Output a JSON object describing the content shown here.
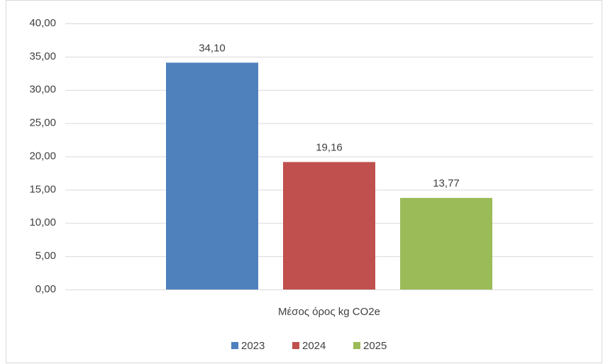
{
  "chart_data": {
    "type": "bar",
    "categories": [
      "Μέσος όρος kg CO2e"
    ],
    "series": [
      {
        "name": "2023",
        "color": "#4f81bd",
        "values": [
          34.1
        ],
        "value_labels": [
          "34,10"
        ]
      },
      {
        "name": "2024",
        "color": "#c0504d",
        "values": [
          19.16
        ],
        "value_labels": [
          "19,16"
        ]
      },
      {
        "name": "2025",
        "color": "#9bbb59",
        "values": [
          13.77
        ],
        "value_labels": [
          "13,77"
        ]
      }
    ],
    "ylim": [
      0,
      40
    ],
    "yticks": [
      {
        "value": 0,
        "label": "0,00"
      },
      {
        "value": 5,
        "label": "5,00"
      },
      {
        "value": 10,
        "label": "10,00"
      },
      {
        "value": 15,
        "label": "15,00"
      },
      {
        "value": 20,
        "label": "20,00"
      },
      {
        "value": 25,
        "label": "25,00"
      },
      {
        "value": 30,
        "label": "30,00"
      },
      {
        "value": 35,
        "label": "35,00"
      },
      {
        "value": 40,
        "label": "40,00"
      }
    ],
    "grid": true,
    "legend": "bottom"
  }
}
